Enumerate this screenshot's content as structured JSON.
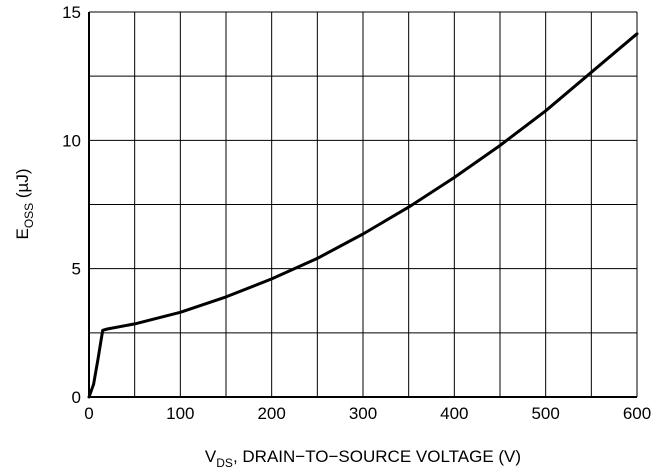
{
  "chart_data": {
    "type": "line",
    "title": "",
    "xlabel": {
      "main": "V",
      "sub": "DS",
      "rest": ", DRAIN−TO−SOURCE VOLTAGE (V)"
    },
    "ylabel": {
      "main": "E",
      "sub": "OSS",
      "rest": " (µJ)"
    },
    "xlim": [
      0,
      600
    ],
    "ylim": [
      0,
      15
    ],
    "xticks": [
      0,
      100,
      200,
      300,
      400,
      500,
      600
    ],
    "yticks": [
      0,
      5,
      10,
      15
    ],
    "x_gridlines": [
      0,
      50,
      100,
      150,
      200,
      250,
      300,
      350,
      400,
      450,
      500,
      550,
      600
    ],
    "y_gridlines": [
      0,
      2.5,
      5,
      7.5,
      10,
      12.5,
      15
    ],
    "grid": true,
    "series": [
      {
        "color": "#000000",
        "x": [
          0,
          5,
          10,
          15,
          20,
          50,
          100,
          150,
          200,
          250,
          300,
          350,
          400,
          450,
          500,
          550,
          600
        ],
        "y": [
          0,
          0.5,
          1.5,
          2.6,
          2.65,
          2.85,
          3.3,
          3.9,
          4.6,
          5.4,
          6.35,
          7.4,
          8.55,
          9.8,
          11.15,
          12.65,
          14.15
        ]
      }
    ]
  }
}
